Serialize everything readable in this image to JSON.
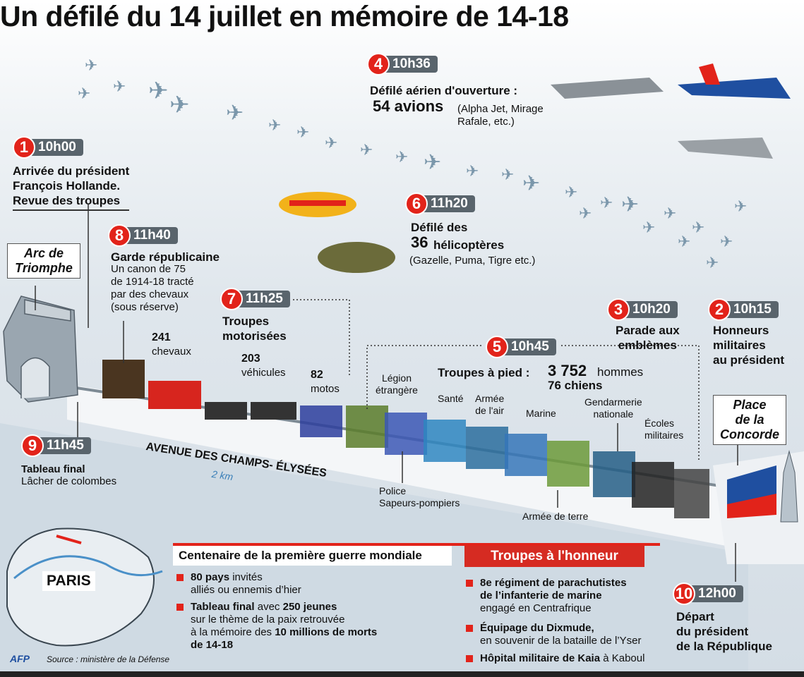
{
  "title": "Un défilé du 14 juillet en mémoire de 14-18",
  "colors": {
    "accent": "#e2231a",
    "badge": "#59646c",
    "planes": "#7b97ab"
  },
  "events": [
    {
      "num": "1",
      "time": "10h00",
      "title": [
        "Arrivée du président",
        "François Hollande.",
        "Revue des troupes"
      ]
    },
    {
      "num": "2",
      "time": "10h15",
      "title": [
        "Honneurs",
        "militaires",
        "au président"
      ]
    },
    {
      "num": "3",
      "time": "10h20",
      "title": [
        "Parade aux",
        "emblèmes"
      ]
    },
    {
      "num": "4",
      "time": "10h36",
      "title": [
        "Défilé aérien d'ouverture :"
      ],
      "count": "54 avions",
      "detail": [
        "(Alpha Jet, Mirage",
        "Rafale, etc.)"
      ]
    },
    {
      "num": "5",
      "time": "10h45",
      "title": [
        "Troupes à pied :"
      ],
      "count": "3 752",
      "count_unit": "hommes",
      "dogs": "76 chiens"
    },
    {
      "num": "6",
      "time": "11h20",
      "title": [
        "Défilé des"
      ],
      "count": "36",
      "count_unit": "hélicoptères",
      "detail": [
        "(Gazelle, Puma, Tigre etc.)"
      ]
    },
    {
      "num": "7",
      "time": "11h25",
      "title": [
        "Troupes",
        "motorisées"
      ]
    },
    {
      "num": "8",
      "time": "11h40",
      "title": [
        "Garde républicaine"
      ],
      "detail": [
        "Un canon de 75",
        "de 1914-18 tracté",
        "par des chevaux",
        "(sous réserve)"
      ]
    },
    {
      "num": "9",
      "time": "11h45",
      "title": [
        "Tableau final"
      ],
      "detail": [
        "Lâcher de colombes"
      ]
    },
    {
      "num": "10",
      "time": "12h00",
      "title": [
        "Départ",
        "du président",
        "de la République"
      ]
    }
  ],
  "counts": {
    "horses": "241",
    "horses_label": "chevaux",
    "vehicles": "203",
    "vehicles_label": "véhicules",
    "motos": "82",
    "motos_label": "motos"
  },
  "troops": [
    "Légion\nétrangère",
    "Police\nSapeurs-pompiers",
    "Santé",
    "Armée\nde l'air",
    "Marine",
    "Armée de terre",
    "Gendarmerie\nnationale",
    "Écoles\nmilitaires"
  ],
  "road": {
    "name": "AVENUE DES CHAMPS- ÉLYSÉES",
    "length": "2 km"
  },
  "places": {
    "arc": "Arc de\nTriomphe",
    "concorde": "Place\nde la\nConcorde",
    "map": "PARIS"
  },
  "centenaire": {
    "heading": "Centenaire de la première guerre mondiale",
    "items": [
      [
        "80 pays",
        " invités",
        "alliés ou ennemis d’hier"
      ],
      [
        "Tableau final",
        " avec ",
        "250 jeunes",
        "sur le thème de la paix retrouvée",
        "à la mémoire des ",
        "10 millions de morts",
        "de 14-18"
      ]
    ]
  },
  "honneur": {
    "heading": "Troupes à l'honneur",
    "items": [
      "8e régiment de parachutistes",
      "de l’infanterie de marine",
      "engagé en Centrafrique",
      "Équipage du Dixmude,",
      "en souvenir de la bataille de l’Yser",
      "Hôpital militaire de Kaia",
      "à Kaboul"
    ]
  },
  "source": "Source : ministère de la Défense",
  "logo": "AFP"
}
